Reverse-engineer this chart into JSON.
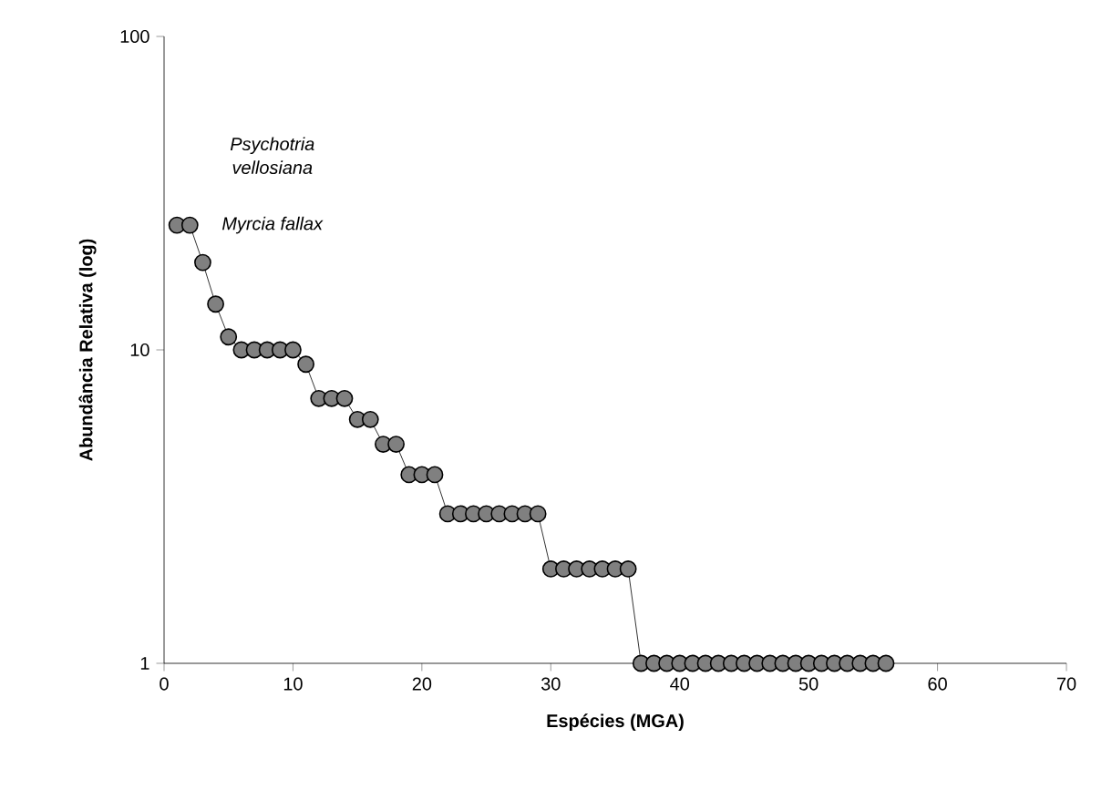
{
  "chart_data": {
    "type": "line",
    "xlabel": "Espécies (MGA)",
    "ylabel": "Abundância Relativa (log)",
    "x": [
      1,
      2,
      3,
      4,
      5,
      6,
      7,
      8,
      9,
      10,
      11,
      12,
      13,
      14,
      15,
      16,
      17,
      18,
      19,
      20,
      21,
      22,
      23,
      24,
      25,
      26,
      27,
      28,
      29,
      30,
      31,
      32,
      33,
      34,
      35,
      36,
      37,
      38,
      39,
      40,
      41,
      42,
      43,
      44,
      45,
      46,
      47,
      48,
      49,
      50,
      51,
      52,
      53,
      54,
      55,
      56
    ],
    "series": [
      {
        "color": "#808080",
        "values": [
          25,
          25,
          19,
          14,
          11,
          10,
          10,
          10,
          10,
          10,
          9,
          7,
          7,
          7,
          6,
          6,
          5,
          5,
          4,
          4,
          4,
          3,
          3,
          3,
          3,
          3,
          3,
          3,
          3,
          2,
          2,
          2,
          2,
          2,
          2,
          2,
          1,
          1,
          1,
          1,
          1,
          1,
          1,
          1,
          1,
          1,
          1,
          1,
          1,
          1,
          1,
          1,
          1,
          1,
          1,
          1
        ]
      }
    ],
    "xlim": [
      0,
      70
    ],
    "ylim": [
      1,
      100
    ],
    "xticks": [
      0,
      10,
      20,
      30,
      40,
      50,
      60,
      70
    ],
    "yticks": [
      1,
      10,
      100
    ],
    "log": "y",
    "grid": false,
    "marker": "circle",
    "line_style": "solid",
    "annotations": [
      "Psychotria vellosiana",
      {
        "text": "Myrcia fallax",
        "x": 2,
        "y": 25
      }
    ]
  }
}
